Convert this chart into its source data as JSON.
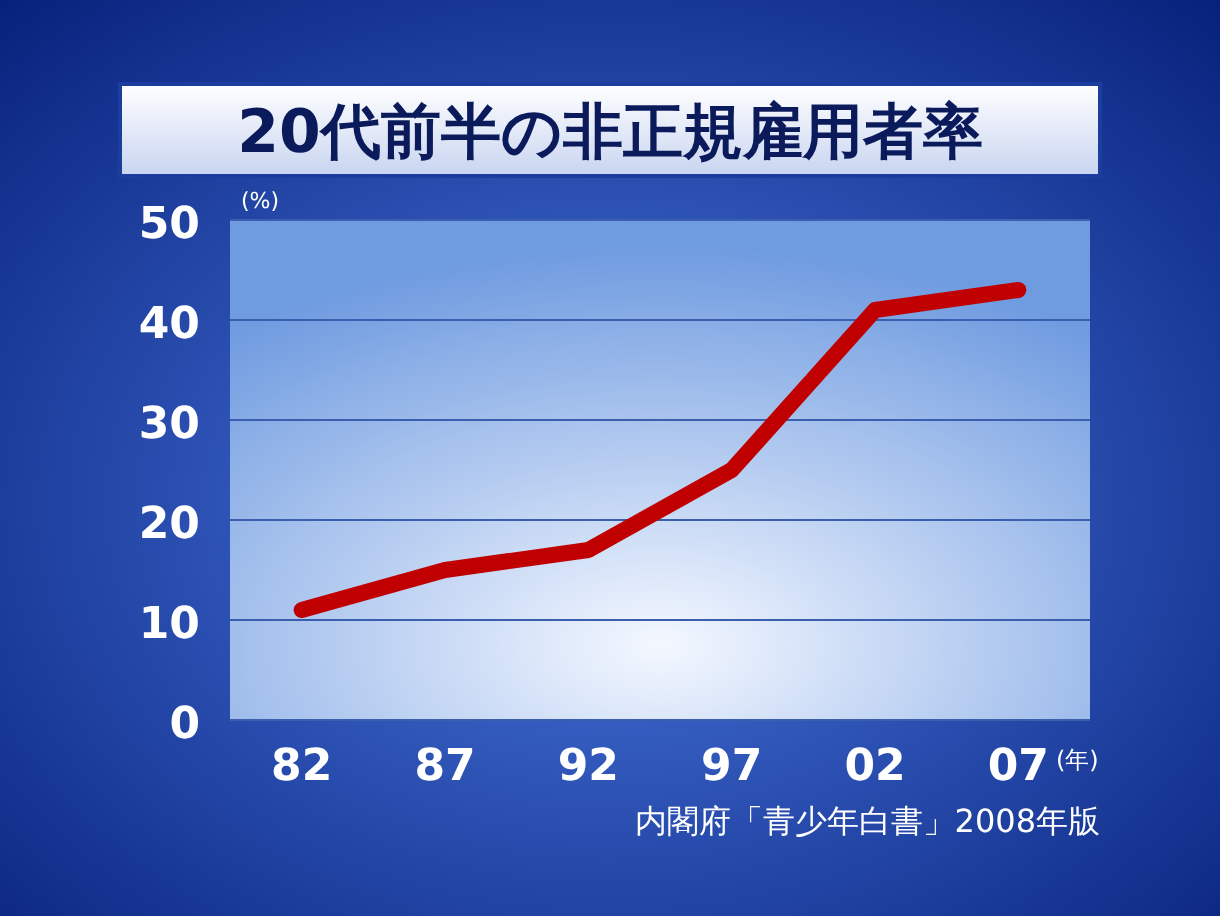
{
  "chart_data": {
    "type": "line",
    "title": "20代前半の非正規雇用者率",
    "ylabel": "(%)",
    "xlabel": "(年)",
    "annotations": [
      "内閣府「青少年白書」2008年版"
    ],
    "categories": [
      "82",
      "87",
      "92",
      "97",
      "02",
      "07"
    ],
    "series": [
      {
        "color": "#c00000",
        "values": [
          11,
          15,
          17,
          25,
          41,
          43
        ]
      }
    ],
    "ylim": [
      0,
      50
    ],
    "yticks": [
      0,
      10,
      20,
      30,
      40,
      50
    ],
    "grid": "y",
    "marker": "none",
    "line_style": "solid"
  }
}
